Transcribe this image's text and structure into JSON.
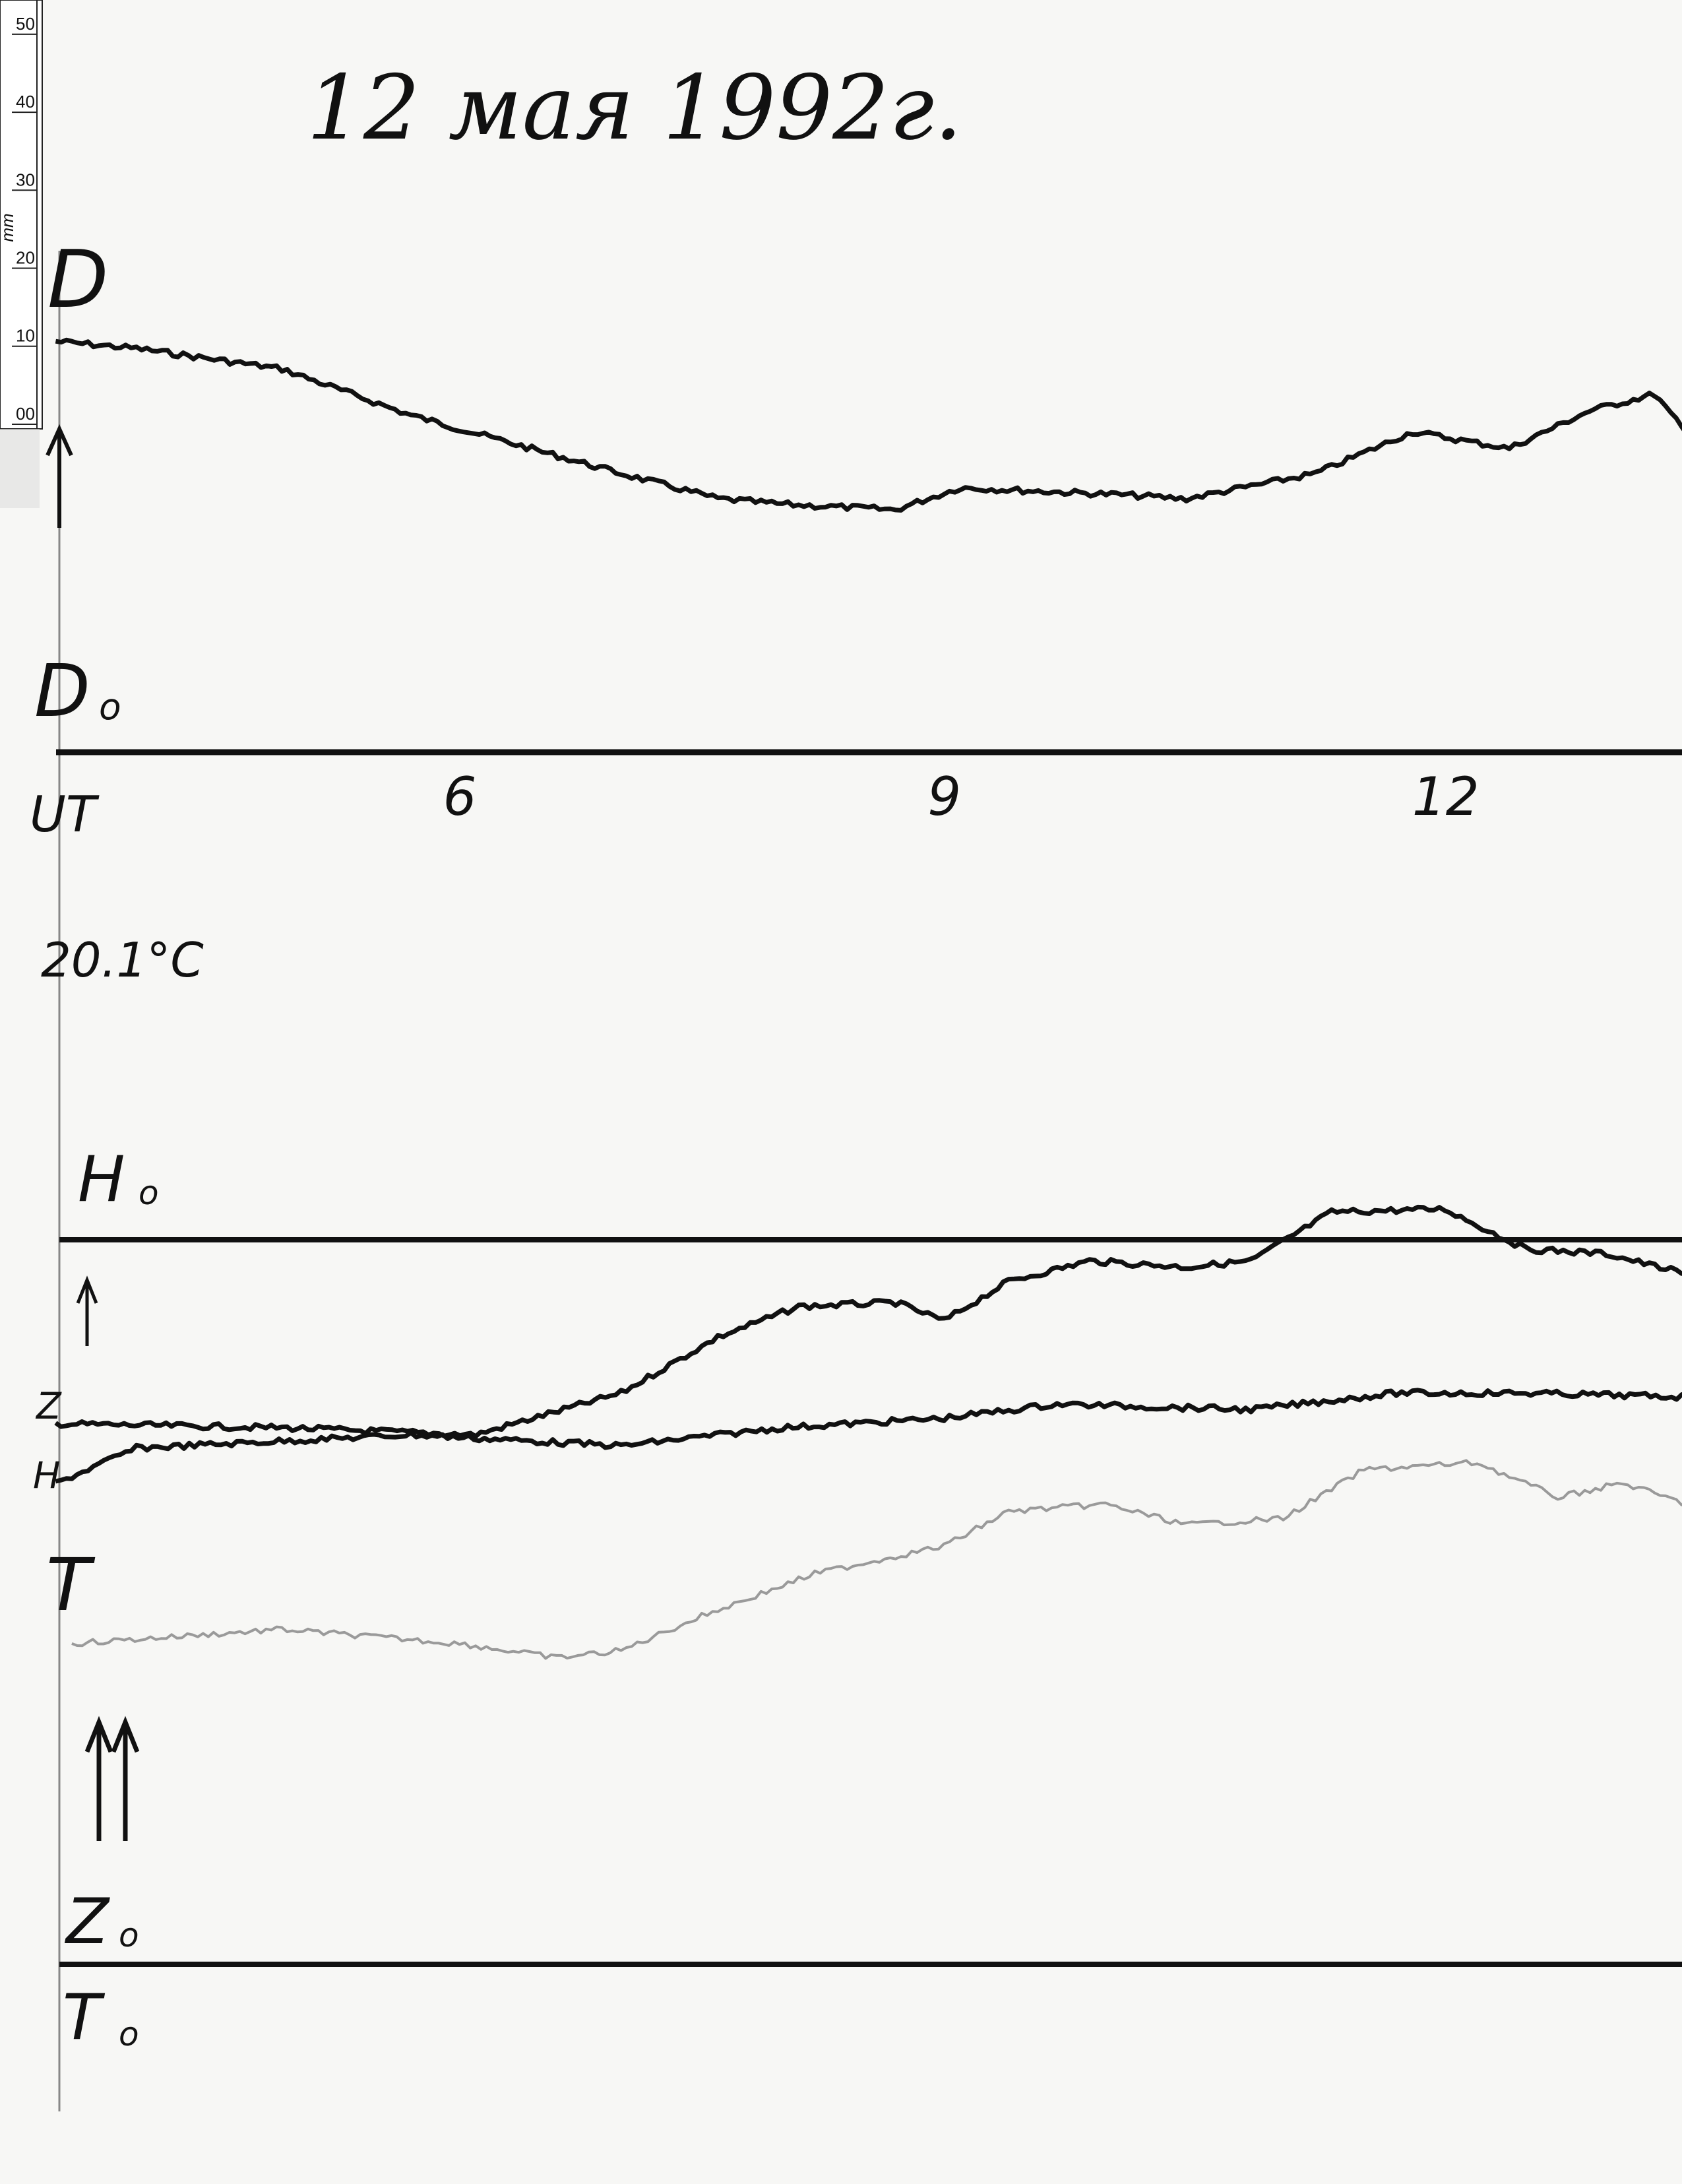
{
  "title": "12 мая 1992г.",
  "ruler": {
    "unit": "mm",
    "labels": [
      "50",
      "40",
      "30",
      "20",
      "10",
      "00"
    ]
  },
  "labels": {
    "D": "D",
    "D0": "D",
    "D0_sub": "o",
    "UT": "UT",
    "temperature": "20.1°C",
    "H0": "H",
    "H0_sub": "o",
    "Z": "Z",
    "H": "H",
    "T": "T",
    "Z0": "Z",
    "Z0_sub": "o",
    "T0": "T",
    "T0_sub": "o"
  },
  "chart_data": {
    "type": "line",
    "title": "12 мая 1992г.",
    "xlabel": "UT",
    "x_ticks": [
      6,
      9,
      12
    ],
    "x_tick_labels": [
      "6",
      "9",
      "12"
    ],
    "xlim": [
      3.5,
      13.6
    ],
    "y_unit": "mm",
    "colors": {
      "D": "#111111",
      "Z": "#111111",
      "H": "#111111",
      "T": "#9a9a9a"
    },
    "series": [
      {
        "name": "D",
        "baseline": "D0",
        "x": [
          3.5,
          4.0,
          4.9,
          5.7,
          7.0,
          7.6,
          8.0,
          8.7,
          9.1,
          10.1,
          10.5,
          11.3,
          11.9,
          12.5,
          13.0,
          13.4,
          13.6
        ],
        "values": [
          52.2,
          51.3,
          48.7,
          42.8,
          35.4,
          32.2,
          31.5,
          30.8,
          33.6,
          32.7,
          32.2,
          35.4,
          40.7,
          38.6,
          43.4,
          45.5,
          40.4
        ]
      },
      {
        "name": "Z",
        "baseline": "H0",
        "x": [
          3.5,
          4.9,
          6.1,
          7.0,
          7.6,
          8.1,
          8.7,
          9.0,
          9.4,
          9.9,
          10.5,
          10.9,
          11.4,
          12.1,
          12.6,
          13.1,
          13.6
        ],
        "values": [
          -23.4,
          -23.9,
          -24.8,
          -19.5,
          -12.4,
          -8.5,
          -8.0,
          -10.3,
          -5.3,
          -2.7,
          -3.5,
          -2.7,
          3.5,
          3.9,
          -1.2,
          -1.8,
          -4.4
        ]
      },
      {
        "name": "H",
        "baseline": "H0",
        "x": [
          3.5,
          4.0,
          5.7,
          7.0,
          8.0,
          9.0,
          9.7,
          10.9,
          11.8,
          12.6,
          13.6
        ],
        "values": [
          -31.0,
          -26.5,
          -24.8,
          -26.2,
          -23.9,
          -22.7,
          -20.9,
          -21.6,
          -19.5,
          -19.5,
          -20.0
        ]
      },
      {
        "name": "T",
        "baseline": "T0",
        "x": [
          3.6,
          4.9,
          6.0,
          6.6,
          7.0,
          7.5,
          8.2,
          9.0,
          9.4,
          10.0,
          10.5,
          11.1,
          11.6,
          12.3,
          12.8,
          13.2,
          13.6
        ],
        "values": [
          40.7,
          42.5,
          40.7,
          38.9,
          39.8,
          44.2,
          49.6,
          53.1,
          57.5,
          58.4,
          55.8,
          56.6,
          62.8,
          63.7,
          59.3,
          61.1,
          58.4
        ]
      }
    ]
  }
}
